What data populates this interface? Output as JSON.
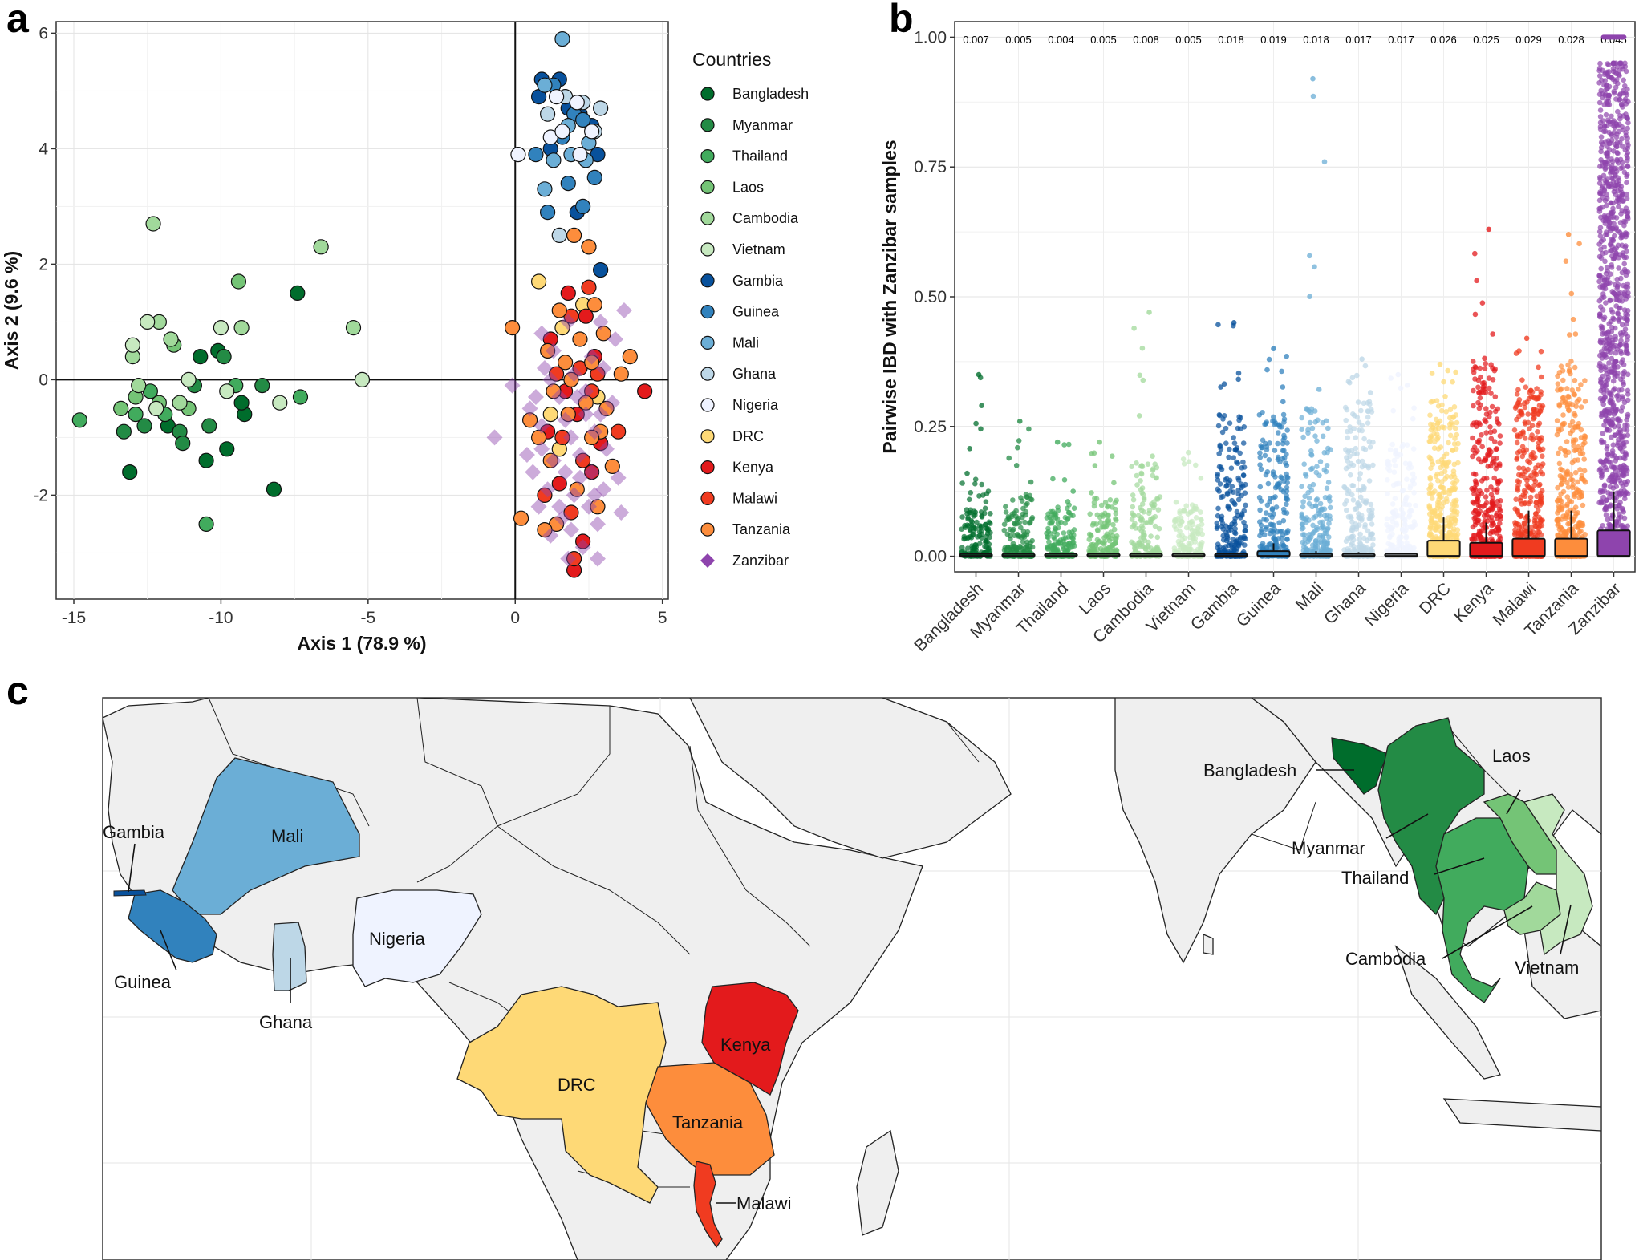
{
  "panels": {
    "a": "a",
    "b": "b",
    "c": "c"
  },
  "colors": {
    "Bangladesh": "#006d2c",
    "Myanmar": "#238b45",
    "Thailand": "#41ab5d",
    "Laos": "#74c476",
    "Cambodia": "#a1d99b",
    "Vietnam": "#c7e9c0",
    "Gambia": "#08519c",
    "Guinea": "#3182bd",
    "Mali": "#6baed6",
    "Ghana": "#bdd7e7",
    "Nigeria": "#eff3ff",
    "DRC": "#fed976",
    "Kenya": "#e31a1c",
    "Malawi": "#f03b20",
    "Tanzania": "#fd8d3c",
    "Zanzibar": "#8e44ad"
  },
  "chart_data": [
    {
      "type": "scatter",
      "panel": "a",
      "xlabel": "Axis 1 (78.9 %)",
      "ylabel": "Axis 2 (9.6 %)",
      "xlim": [
        -15.6,
        5.2
      ],
      "ylim": [
        -3.8,
        6.2
      ],
      "xticks": [
        -15,
        -10,
        -5,
        0,
        5
      ],
      "yticks": [
        -2,
        0,
        2,
        4,
        6
      ],
      "legend_title": "Countries",
      "legend_position": "right",
      "legend": [
        "Bangladesh",
        "Myanmar",
        "Thailand",
        "Laos",
        "Cambodia",
        "Vietnam",
        "Gambia",
        "Guinea",
        "Mali",
        "Ghana",
        "Nigeria",
        "DRC",
        "Kenya",
        "Malawi",
        "Tanzania",
        "Zanzibar"
      ],
      "series": [
        {
          "name": "Bangladesh",
          "points": [
            [
              -7.4,
              1.5
            ],
            [
              -9.2,
              -0.6
            ],
            [
              -10.7,
              0.4
            ],
            [
              -10.5,
              -1.4
            ],
            [
              -9.8,
              -1.2
            ],
            [
              -8.2,
              -1.9
            ],
            [
              -13.1,
              -1.6
            ],
            [
              -11.8,
              -0.8
            ],
            [
              -10.1,
              0.5
            ],
            [
              -9.3,
              -0.4
            ]
          ]
        },
        {
          "name": "Myanmar",
          "points": [
            [
              -9.9,
              0.4
            ],
            [
              -10.4,
              -0.8
            ],
            [
              -12.6,
              -0.8
            ],
            [
              -11.4,
              -0.9
            ],
            [
              -8.6,
              -0.1
            ],
            [
              -13.3,
              -0.9
            ],
            [
              -11.3,
              -1.1
            ],
            [
              -10.9,
              -0.1
            ]
          ]
        },
        {
          "name": "Thailand",
          "points": [
            [
              -7.3,
              -0.3
            ],
            [
              -10.5,
              -2.5
            ],
            [
              -12.9,
              -0.6
            ],
            [
              -14.8,
              -0.7
            ],
            [
              -9.5,
              -0.1
            ],
            [
              -11.9,
              -0.6
            ],
            [
              -12.4,
              -0.2
            ]
          ]
        },
        {
          "name": "Laos",
          "points": [
            [
              -9.4,
              1.7
            ],
            [
              -11.6,
              0.6
            ],
            [
              -12.9,
              -0.3
            ],
            [
              -13.4,
              -0.5
            ],
            [
              -12.1,
              -0.4
            ],
            [
              -11.1,
              -0.5
            ]
          ]
        },
        {
          "name": "Cambodia",
          "points": [
            [
              -6.6,
              2.3
            ],
            [
              -12.3,
              2.7
            ],
            [
              -5.5,
              0.9
            ],
            [
              -12.1,
              1.0
            ],
            [
              -11.7,
              0.7
            ],
            [
              -13.0,
              0.4
            ],
            [
              -9.3,
              0.9
            ],
            [
              -11.4,
              -0.4
            ],
            [
              -12.8,
              -0.1
            ]
          ]
        },
        {
          "name": "Vietnam",
          "points": [
            [
              -12.5,
              1.0
            ],
            [
              -13.0,
              0.6
            ],
            [
              -10.0,
              0.9
            ],
            [
              -8.0,
              -0.4
            ],
            [
              -9.8,
              -0.2
            ],
            [
              -5.2,
              0.0
            ],
            [
              -11.1,
              -0.0
            ],
            [
              -12.2,
              -0.5
            ]
          ]
        },
        {
          "name": "Gambia",
          "points": [
            [
              0.9,
              5.2
            ],
            [
              1.5,
              5.2
            ],
            [
              0.8,
              4.9
            ],
            [
              1.8,
              4.7
            ],
            [
              2.2,
              4.6
            ],
            [
              2.6,
              4.4
            ],
            [
              1.2,
              4.0
            ],
            [
              2.8,
              3.9
            ],
            [
              2.1,
              2.9
            ],
            [
              2.9,
              1.9
            ]
          ]
        },
        {
          "name": "Guinea",
          "points": [
            [
              1.3,
              5.1
            ],
            [
              2.0,
              4.6
            ],
            [
              1.6,
              4.2
            ],
            [
              2.3,
              4.5
            ],
            [
              0.7,
              3.9
            ],
            [
              1.8,
              3.4
            ],
            [
              2.3,
              3.0
            ],
            [
              1.1,
              2.9
            ],
            [
              2.7,
              3.5
            ]
          ]
        },
        {
          "name": "Mali",
          "points": [
            [
              1.6,
              5.9
            ],
            [
              1.0,
              5.1
            ],
            [
              1.8,
              4.4
            ],
            [
              2.4,
              3.8
            ],
            [
              1.3,
              3.8
            ],
            [
              1.9,
              3.9
            ],
            [
              2.5,
              4.1
            ],
            [
              1.0,
              3.3
            ],
            [
              2.1,
              4.8
            ]
          ]
        },
        {
          "name": "Ghana",
          "points": [
            [
              1.7,
              4.9
            ],
            [
              2.3,
              4.8
            ],
            [
              1.1,
              4.6
            ],
            [
              2.9,
              4.7
            ],
            [
              1.5,
              2.5
            ],
            [
              2.5,
              2.3
            ],
            [
              2.7,
              4.3
            ]
          ]
        },
        {
          "name": "Nigeria",
          "points": [
            [
              0.1,
              3.9
            ],
            [
              1.4,
              4.9
            ],
            [
              2.1,
              4.8
            ],
            [
              2.6,
              4.3
            ],
            [
              1.2,
              4.2
            ],
            [
              2.2,
              3.9
            ],
            [
              1.6,
              4.3
            ]
          ]
        },
        {
          "name": "DRC",
          "points": [
            [
              0.8,
              1.7
            ],
            [
              1.6,
              0.9
            ],
            [
              2.8,
              -0.3
            ],
            [
              1.2,
              -0.6
            ],
            [
              2.3,
              1.3
            ],
            [
              1.5,
              -1.2
            ]
          ]
        },
        {
          "name": "Kenya",
          "points": [
            [
              1.8,
              1.5
            ],
            [
              2.4,
              1.1
            ],
            [
              1.2,
              0.7
            ],
            [
              2.7,
              0.4
            ],
            [
              1.7,
              -0.2
            ],
            [
              2.1,
              -0.6
            ],
            [
              2.9,
              -1.1
            ],
            [
              1.5,
              -1.8
            ],
            [
              4.4,
              -0.2
            ],
            [
              2.3,
              -2.8
            ],
            [
              2.0,
              -3.3
            ],
            [
              1.1,
              -0.9
            ],
            [
              2.6,
              -1.6
            ]
          ]
        },
        {
          "name": "Malawi",
          "points": [
            [
              2.5,
              1.6
            ],
            [
              1.9,
              1.1
            ],
            [
              2.2,
              0.2
            ],
            [
              1.4,
              0.1
            ],
            [
              2.8,
              0.1
            ],
            [
              1.6,
              -1.0
            ],
            [
              2.3,
              -1.4
            ],
            [
              3.5,
              -0.9
            ],
            [
              1.0,
              -2.0
            ],
            [
              1.9,
              -2.3
            ],
            [
              2.0,
              -3.1
            ],
            [
              2.6,
              -0.2
            ]
          ]
        },
        {
          "name": "Tanzania",
          "points": [
            [
              -0.1,
              0.9
            ],
            [
              2.0,
              2.5
            ],
            [
              2.5,
              2.3
            ],
            [
              1.5,
              1.2
            ],
            [
              2.7,
              1.3
            ],
            [
              1.1,
              0.5
            ],
            [
              2.2,
              0.7
            ],
            [
              3.0,
              0.8
            ],
            [
              3.9,
              0.4
            ],
            [
              1.3,
              -0.2
            ],
            [
              2.6,
              0.3
            ],
            [
              3.6,
              0.1
            ],
            [
              1.8,
              -0.6
            ],
            [
              2.9,
              -0.9
            ],
            [
              3.3,
              -1.5
            ],
            [
              1.2,
              -1.4
            ],
            [
              2.1,
              -1.9
            ],
            [
              1.4,
              -2.5
            ],
            [
              2.8,
              -2.2
            ],
            [
              0.2,
              -2.4
            ],
            [
              1.0,
              -2.6
            ],
            [
              0.8,
              -1.0
            ],
            [
              1.9,
              -0.0
            ],
            [
              2.4,
              -0.4
            ],
            [
              3.1,
              -0.5
            ],
            [
              1.7,
              0.3
            ],
            [
              0.5,
              -0.7
            ],
            [
              2.6,
              -1.0
            ]
          ]
        },
        {
          "name": "Zanzibar",
          "points": [
            [
              3.7,
              1.2
            ],
            [
              2.9,
              1.0
            ],
            [
              3.4,
              0.7
            ],
            [
              1.8,
              1.0
            ],
            [
              0.9,
              0.8
            ],
            [
              2.6,
              0.4
            ],
            [
              3.0,
              0.2
            ],
            [
              1.2,
              0.0
            ],
            [
              -0.1,
              -0.1
            ],
            [
              2.0,
              0.1
            ],
            [
              0.5,
              -0.5
            ],
            [
              3.3,
              -0.4
            ],
            [
              1.5,
              -0.3
            ],
            [
              2.4,
              -0.6
            ],
            [
              -0.7,
              -1.0
            ],
            [
              0.9,
              -0.8
            ],
            [
              1.9,
              -1.0
            ],
            [
              2.7,
              -0.9
            ],
            [
              3.1,
              -1.2
            ],
            [
              1.3,
              -1.4
            ],
            [
              2.2,
              -1.3
            ],
            [
              0.6,
              -1.6
            ],
            [
              1.7,
              -1.6
            ],
            [
              2.6,
              -1.6
            ],
            [
              3.0,
              -1.9
            ],
            [
              1.1,
              -1.9
            ],
            [
              2.0,
              -2.0
            ],
            [
              1.5,
              -2.2
            ],
            [
              2.5,
              -2.2
            ],
            [
              0.8,
              -2.2
            ],
            [
              1.9,
              -2.6
            ],
            [
              2.8,
              -2.5
            ],
            [
              1.2,
              -2.7
            ],
            [
              2.3,
              -2.9
            ],
            [
              1.8,
              -3.1
            ],
            [
              2.8,
              -3.1
            ],
            [
              1.7,
              -0.7
            ],
            [
              2.4,
              -0.2
            ],
            [
              0.7,
              -0.3
            ],
            [
              1.3,
              0.5
            ],
            [
              2.9,
              -0.6
            ],
            [
              3.5,
              -1.7
            ],
            [
              0.4,
              -1.3
            ],
            [
              2.1,
              -0.3
            ],
            [
              1.0,
              0.2
            ],
            [
              3.6,
              -2.3
            ],
            [
              1.6,
              -2.4
            ],
            [
              2.2,
              -1.7
            ],
            [
              0.9,
              -1.2
            ],
            [
              2.7,
              -2.0
            ]
          ]
        }
      ]
    },
    {
      "type": "box",
      "panel": "b",
      "ylabel": "Pairwise IBD with Zanzibar samples",
      "ylim": [
        -0.03,
        1.03
      ],
      "yticks": [
        "0.00",
        "0.25",
        "0.50",
        "0.75",
        "1.00"
      ],
      "ytick_values": [
        0.0,
        0.25,
        0.5,
        0.75,
        1.0
      ],
      "categories": [
        "Bangladesh",
        "Myanmar",
        "Thailand",
        "Laos",
        "Cambodia",
        "Vietnam",
        "Gambia",
        "Guinea",
        "Mali",
        "Ghana",
        "Nigeria",
        "DRC",
        "Kenya",
        "Malawi",
        "Tanzania",
        "Zanzibar"
      ],
      "means": [
        "0.007",
        "0.005",
        "0.004",
        "0.005",
        "0.008",
        "0.005",
        "0.018",
        "0.019",
        "0.018",
        "0.017",
        "0.017",
        "0.026",
        "0.025",
        "0.029",
        "0.028",
        "0.045"
      ],
      "max_values": [
        0.35,
        0.26,
        0.22,
        0.22,
        0.47,
        0.2,
        0.45,
        0.4,
        0.92,
        0.38,
        0.35,
        0.37,
        0.63,
        0.42,
        0.62,
        0.95
      ],
      "dense_top": [
        0.15,
        0.12,
        0.1,
        0.12,
        0.18,
        0.1,
        0.28,
        0.28,
        0.3,
        0.3,
        0.22,
        0.3,
        0.38,
        0.33,
        0.38,
        0.95
      ],
      "boxes": [
        {
          "q1": 0.0,
          "median": 0.0,
          "q3": 0.002,
          "whisker": 0.004
        },
        {
          "q1": 0.0,
          "median": 0.0,
          "q3": 0.002,
          "whisker": 0.004
        },
        {
          "q1": 0.0,
          "median": 0.0,
          "q3": 0.002,
          "whisker": 0.004
        },
        {
          "q1": 0.0,
          "median": 0.0,
          "q3": 0.002,
          "whisker": 0.004
        },
        {
          "q1": 0.0,
          "median": 0.0,
          "q3": 0.002,
          "whisker": 0.004
        },
        {
          "q1": 0.0,
          "median": 0.0,
          "q3": 0.002,
          "whisker": 0.004
        },
        {
          "q1": 0.0,
          "median": 0.0,
          "q3": 0.002,
          "whisker": 0.004
        },
        {
          "q1": 0.0,
          "median": 0.0,
          "q3": 0.01,
          "whisker": 0.025
        },
        {
          "q1": 0.0,
          "median": 0.0,
          "q3": 0.004,
          "whisker": 0.01
        },
        {
          "q1": 0.0,
          "median": 0.0,
          "q3": 0.003,
          "whisker": 0.008
        },
        {
          "q1": 0.0,
          "median": 0.0,
          "q3": 0.003,
          "whisker": 0.006
        },
        {
          "q1": 0.0,
          "median": 0.0,
          "q3": 0.03,
          "whisker": 0.075
        },
        {
          "q1": 0.0,
          "median": 0.0,
          "q3": 0.026,
          "whisker": 0.065
        },
        {
          "q1": 0.0,
          "median": 0.0,
          "q3": 0.034,
          "whisker": 0.088
        },
        {
          "q1": 0.0,
          "median": 0.0,
          "q3": 0.034,
          "whisker": 0.088
        },
        {
          "q1": 0.0,
          "median": 0.0,
          "q3": 0.05,
          "whisker": 0.125
        }
      ]
    }
  ],
  "map": {
    "labels": [
      "Gambia",
      "Mali",
      "Guinea",
      "Ghana",
      "Nigeria",
      "DRC",
      "Kenya",
      "Tanzania",
      "Malawi",
      "Bangladesh",
      "Laos",
      "Myanmar",
      "Thailand",
      "Cambodia",
      "Vietnam"
    ]
  }
}
